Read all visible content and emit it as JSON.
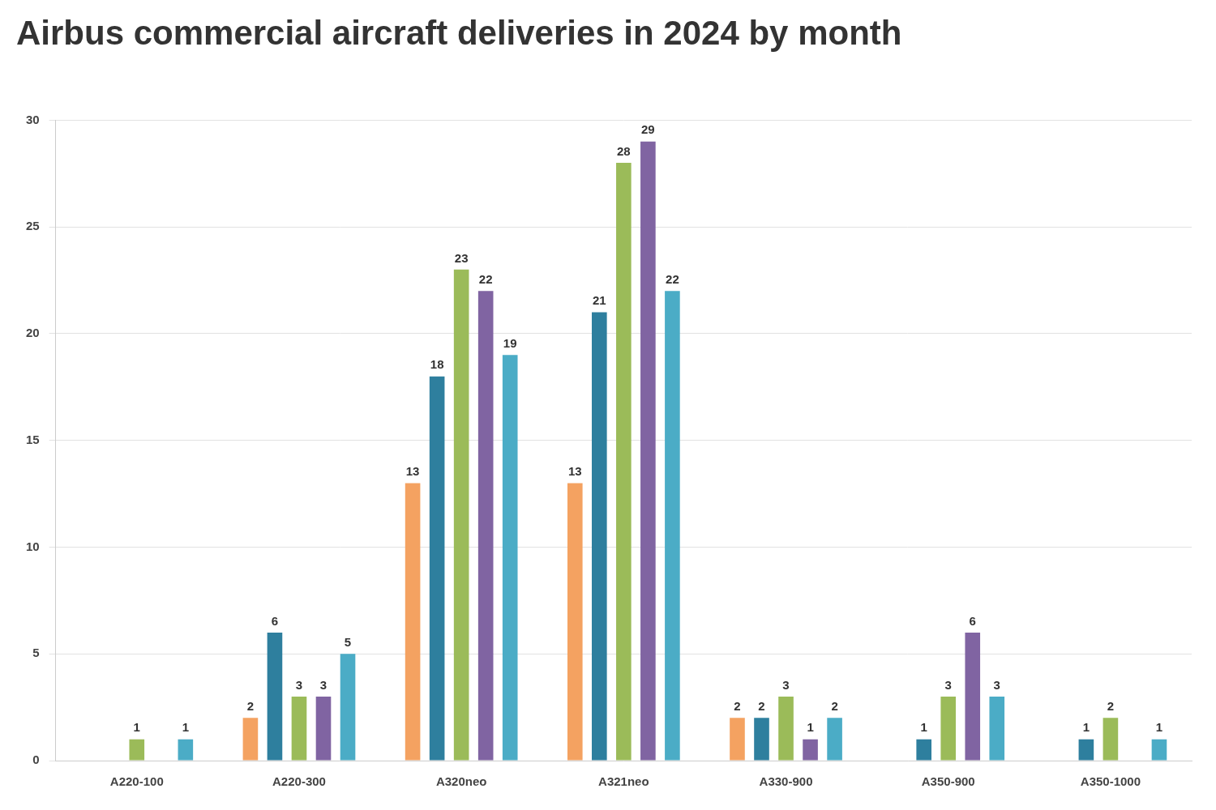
{
  "chart_data": {
    "type": "bar",
    "title": "Airbus commercial aircraft deliveries in 2024 by month",
    "categories": [
      "A220-100",
      "A220-300",
      "A320neo",
      "A321neo",
      "A330-900",
      "A350-900",
      "A350-1000"
    ],
    "series": [
      {
        "color": "#f4a261",
        "values": [
          null,
          2,
          13,
          13,
          2,
          null,
          null
        ]
      },
      {
        "color": "#2e7f9e",
        "values": [
          null,
          6,
          18,
          21,
          2,
          1,
          1
        ]
      },
      {
        "color": "#9bbb59",
        "values": [
          1,
          3,
          23,
          28,
          3,
          3,
          2
        ]
      },
      {
        "color": "#8064a2",
        "values": [
          null,
          3,
          22,
          29,
          1,
          6,
          null
        ]
      },
      {
        "color": "#4bacc6",
        "values": [
          1,
          5,
          19,
          22,
          2,
          3,
          1
        ]
      }
    ],
    "ylim": [
      0,
      30
    ],
    "yticks": [
      0,
      5,
      10,
      15,
      20,
      25,
      30
    ],
    "grid": true,
    "data_labels": true
  }
}
